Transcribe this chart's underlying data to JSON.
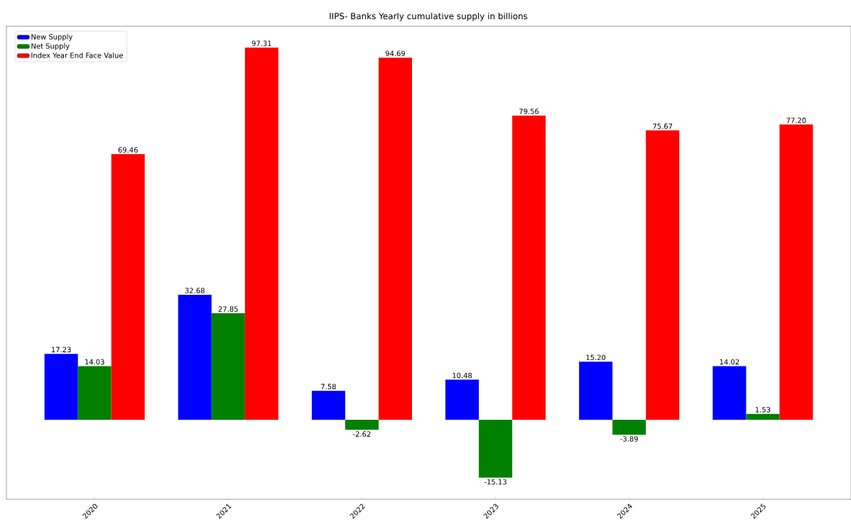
{
  "chart_data": {
    "type": "bar",
    "title": "IIPS- Banks Yearly cumulative supply in billions",
    "categories": [
      "2020",
      "2021",
      "2022",
      "2023",
      "2024",
      "2025"
    ],
    "series": [
      {
        "name": "New Supply",
        "color": "#0000ff",
        "values": [
          17.23,
          32.68,
          7.58,
          10.48,
          15.2,
          14.02
        ],
        "value_labels": [
          "17.23",
          "32.68",
          "7.58",
          "10.48",
          "15.20",
          "14.02"
        ]
      },
      {
        "name": "Net Supply",
        "color": "#008000",
        "values": [
          14.03,
          27.85,
          -2.62,
          -15.13,
          -3.89,
          1.53
        ],
        "value_labels": [
          "14.03",
          "27.85",
          "-2.62",
          "-15.13",
          "-3.89",
          "1.53"
        ]
      },
      {
        "name": "Index Year End Face Value",
        "color": "#ff0000",
        "values": [
          69.46,
          97.31,
          94.69,
          79.56,
          75.67,
          77.2
        ],
        "value_labels": [
          "69.46",
          "97.31",
          "94.69",
          "79.56",
          "75.67",
          "77.20"
        ]
      }
    ],
    "ylim": [
      -20.8,
      102.9
    ],
    "tick_labels": "x",
    "legend": "top left",
    "grid": false
  }
}
